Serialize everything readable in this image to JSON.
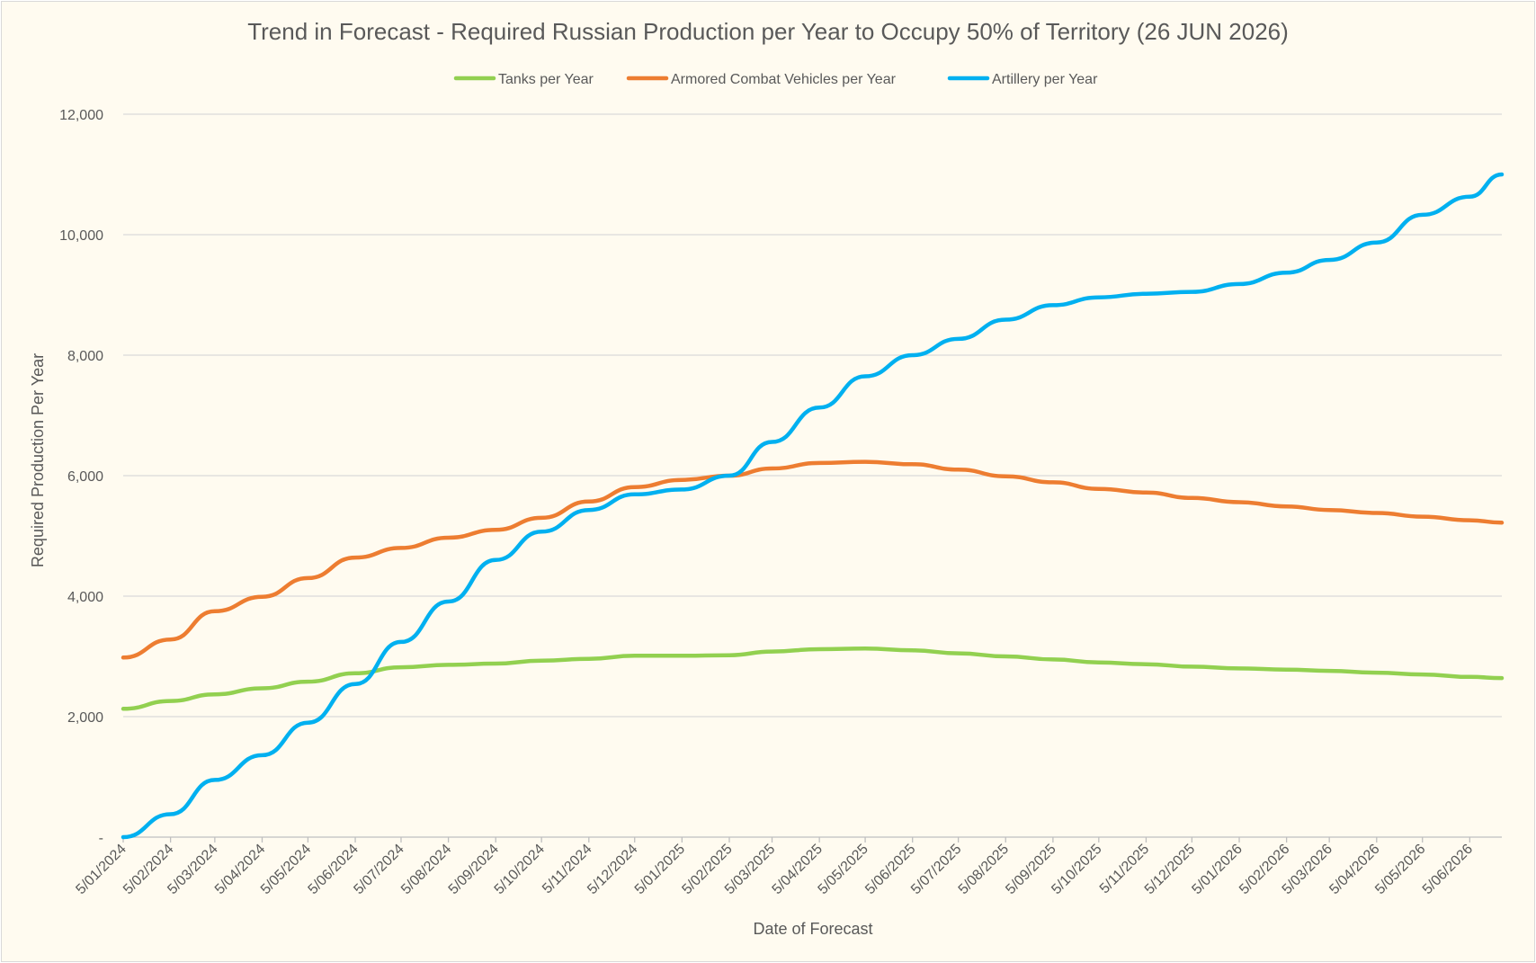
{
  "chart_data": {
    "type": "line",
    "title": "Trend in Forecast - Required Russian Production per Year to Occupy 50% of Territory (26 JUN 2026)",
    "xlabel": "Date of Forecast",
    "ylabel": "Required Production Per Year",
    "ylim": [
      0,
      12000
    ],
    "y_ticks": [
      "-",
      "2,000",
      "4,000",
      "6,000",
      "8,000",
      "10,000",
      "12,000"
    ],
    "y_tick_values": [
      0,
      2000,
      4000,
      6000,
      8000,
      10000,
      12000
    ],
    "x_ticks": [
      "5/01/2024",
      "5/02/2024",
      "5/03/2024",
      "5/04/2024",
      "5/05/2024",
      "5/06/2024",
      "5/07/2024",
      "5/08/2024",
      "5/09/2024",
      "5/10/2024",
      "5/11/2024",
      "5/12/2024",
      "5/01/2025",
      "5/02/2025",
      "5/03/2025",
      "5/04/2025",
      "5/05/2025",
      "5/06/2025",
      "5/07/2025",
      "5/08/2025",
      "5/09/2025",
      "5/10/2025",
      "5/11/2025",
      "5/12/2025",
      "5/01/2026",
      "5/02/2026",
      "5/03/2026",
      "5/04/2026",
      "5/05/2026",
      "5/06/2026"
    ],
    "x_range": [
      "5/01/2024",
      "26 JUN 2026"
    ],
    "legend_position": "top",
    "grid": true,
    "series": [
      {
        "name": "Tanks per Year",
        "color": "#92d050",
        "x": [
          "5/01/2024",
          "5/02/2024",
          "5/03/2024",
          "5/04/2024",
          "5/05/2024",
          "5/06/2024",
          "5/07/2024",
          "5/08/2024",
          "5/09/2024",
          "5/10/2024",
          "5/11/2024",
          "5/12/2024",
          "5/01/2025",
          "5/02/2025",
          "5/03/2025",
          "5/04/2025",
          "5/05/2025",
          "5/06/2025",
          "5/07/2025",
          "5/08/2025",
          "5/09/2025",
          "5/10/2025",
          "5/11/2025",
          "5/12/2025",
          "5/01/2026",
          "5/02/2026",
          "5/03/2026",
          "5/04/2026",
          "5/05/2026",
          "5/06/2026",
          "26 JUN 2026"
        ],
        "values": [
          2130,
          2260,
          2370,
          2470,
          2580,
          2720,
          2820,
          2860,
          2880,
          2930,
          2960,
          3010,
          3010,
          3020,
          3080,
          3120,
          3130,
          3100,
          3050,
          3000,
          2950,
          2900,
          2870,
          2830,
          2800,
          2780,
          2760,
          2730,
          2700,
          2660,
          2640
        ]
      },
      {
        "name": "Armored Combat Vehicles per Year",
        "color": "#ed7d31",
        "x": [
          "5/01/2024",
          "5/02/2024",
          "5/03/2024",
          "5/04/2024",
          "5/05/2024",
          "5/06/2024",
          "5/07/2024",
          "5/08/2024",
          "5/09/2024",
          "5/10/2024",
          "5/11/2024",
          "5/12/2024",
          "5/01/2025",
          "5/02/2025",
          "5/03/2025",
          "5/04/2025",
          "5/05/2025",
          "5/06/2025",
          "5/07/2025",
          "5/08/2025",
          "5/09/2025",
          "5/10/2025",
          "5/11/2025",
          "5/12/2025",
          "5/01/2026",
          "5/02/2026",
          "5/03/2026",
          "5/04/2026",
          "5/05/2026",
          "5/06/2026",
          "26 JUN 2026"
        ],
        "values": [
          2980,
          3280,
          3750,
          3990,
          4300,
          4640,
          4800,
          4970,
          5100,
          5300,
          5570,
          5810,
          5930,
          6000,
          6120,
          6210,
          6230,
          6190,
          6100,
          5990,
          5890,
          5780,
          5720,
          5630,
          5560,
          5490,
          5430,
          5380,
          5320,
          5260,
          5220
        ]
      },
      {
        "name": "Artillery per Year",
        "color": "#00b0f0",
        "x": [
          "5/01/2024",
          "5/02/2024",
          "5/03/2024",
          "5/04/2024",
          "5/05/2024",
          "5/06/2024",
          "5/07/2024",
          "5/08/2024",
          "5/09/2024",
          "5/10/2024",
          "5/11/2024",
          "5/12/2024",
          "5/01/2025",
          "5/02/2025",
          "5/03/2025",
          "5/04/2025",
          "5/05/2025",
          "5/06/2025",
          "5/07/2025",
          "5/08/2025",
          "5/09/2025",
          "5/10/2025",
          "5/11/2025",
          "5/12/2025",
          "5/01/2026",
          "5/02/2026",
          "5/03/2026",
          "5/04/2026",
          "5/05/2026",
          "5/06/2026",
          "26 JUN 2026"
        ],
        "values": [
          0,
          380,
          950,
          1360,
          1900,
          2540,
          3240,
          3910,
          4600,
          5070,
          5430,
          5690,
          5770,
          6000,
          6560,
          7130,
          7650,
          8000,
          8270,
          8590,
          8830,
          8960,
          9020,
          9050,
          9180,
          9370,
          9580,
          9870,
          10330,
          10630,
          11000
        ]
      }
    ]
  }
}
